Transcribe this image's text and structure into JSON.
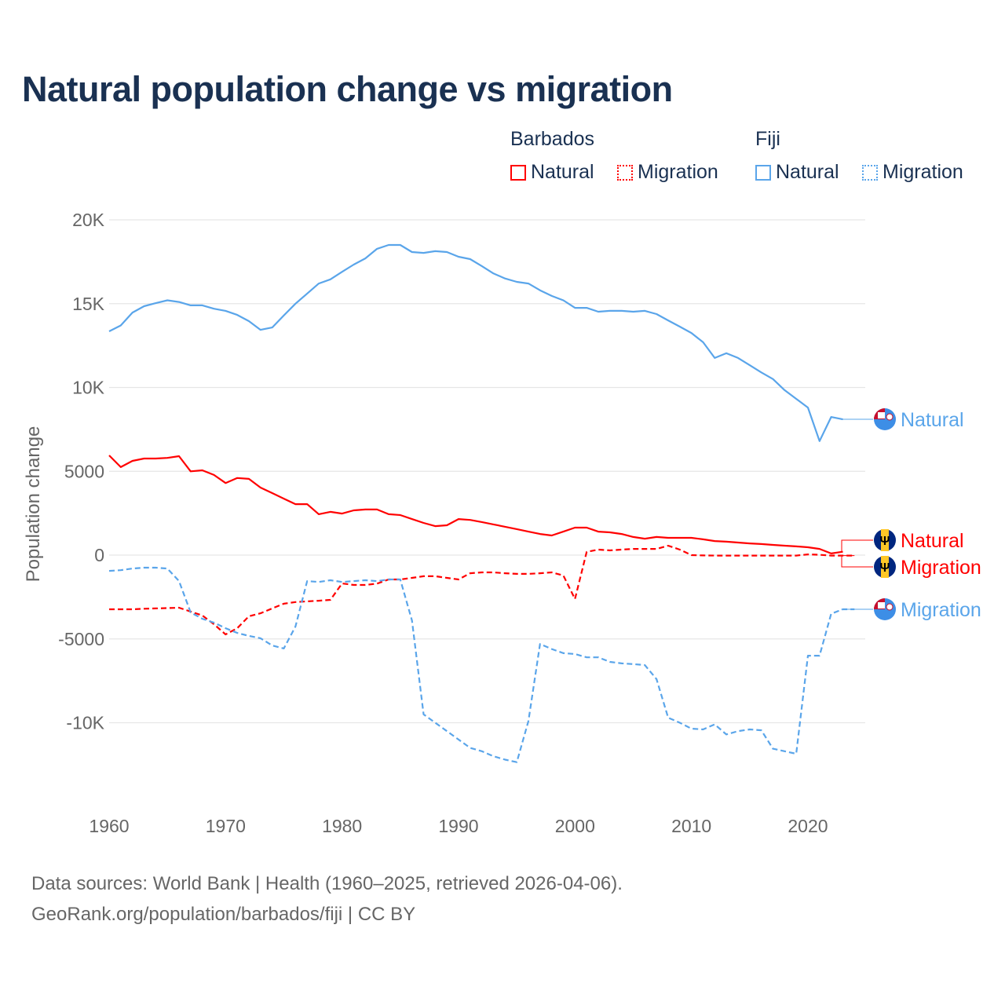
{
  "title": "Natural population change vs migration",
  "legend": {
    "groups": [
      {
        "name": "Barbados",
        "items": [
          {
            "label": "Natural",
            "style": "solid"
          },
          {
            "label": "Migration",
            "style": "dotted"
          }
        ],
        "color": "#ff0000"
      },
      {
        "name": "Fiji",
        "items": [
          {
            "label": "Natural",
            "style": "solid"
          },
          {
            "label": "Migration",
            "style": "dotted"
          }
        ],
        "color": "#5aa5ea"
      }
    ]
  },
  "footer": {
    "line1": "Data sources: World Bank | Health (1960–2025, retrieved 2026-04-06).",
    "line2": "GeoRank.org/population/barbados/fiji | CC BY"
  },
  "chart_data": {
    "type": "line",
    "title": "Natural population change vs migration",
    "xlabel": "",
    "ylabel": "Population change",
    "xlim": [
      1960,
      2025
    ],
    "ylim": [
      -14000,
      21000
    ],
    "x_ticks": [
      1960,
      1970,
      1980,
      1990,
      2000,
      2010,
      2020
    ],
    "x_tick_labels": [
      "1960",
      "1970",
      "1980",
      "1990",
      "2000",
      "2010",
      "2020"
    ],
    "y_ticks": [
      20000,
      15000,
      10000,
      5000,
      0,
      -5000,
      -10000
    ],
    "y_tick_labels": [
      "20K",
      "15K",
      "10K",
      "5000",
      "0",
      "-5000",
      "-10K"
    ],
    "grid": true,
    "legend_position": "top-right",
    "series": [
      {
        "name": "Fiji Natural",
        "end_label": "Natural",
        "country": "Fiji",
        "color": "#5aa5ea",
        "dash": "solid",
        "start_year": 1960,
        "values": [
          13350,
          13700,
          14470,
          14850,
          15030,
          15200,
          15100,
          14900,
          14900,
          14700,
          14570,
          14330,
          13960,
          13440,
          13580,
          14300,
          15000,
          15600,
          16200,
          16450,
          16900,
          17330,
          17700,
          18270,
          18500,
          18500,
          18080,
          18030,
          18130,
          18080,
          17800,
          17660,
          17240,
          16800,
          16500,
          16300,
          16200,
          15800,
          15460,
          15200,
          14750,
          14750,
          14520,
          14570,
          14570,
          14520,
          14570,
          14380,
          14000,
          13630,
          13250,
          12700,
          11760,
          12040,
          11760,
          11330,
          10900,
          10500,
          9840,
          9320,
          8800,
          6800,
          8240,
          8100
        ]
      },
      {
        "name": "Barbados Natural",
        "end_label": "Natural",
        "country": "Barbados",
        "color": "#ff0000",
        "dash": "solid",
        "start_year": 1960,
        "values": [
          5950,
          5250,
          5620,
          5760,
          5760,
          5800,
          5900,
          5000,
          5060,
          4780,
          4300,
          4600,
          4550,
          4030,
          3700,
          3370,
          3040,
          3040,
          2440,
          2580,
          2480,
          2670,
          2720,
          2720,
          2440,
          2390,
          2150,
          1920,
          1730,
          1780,
          2150,
          2100,
          1970,
          1830,
          1690,
          1550,
          1400,
          1260,
          1170,
          1400,
          1640,
          1640,
          1400,
          1360,
          1260,
          1080,
          980,
          1080,
          1030,
          1030,
          1030,
          940,
          840,
          800,
          750,
          700,
          660,
          610,
          560,
          520,
          470,
          370,
          100,
          200
        ]
      },
      {
        "name": "Barbados Migration",
        "end_label": "Migration",
        "country": "Barbados",
        "color": "#ff0000",
        "dash": "dashed",
        "start_year": 1960,
        "values": [
          -3230,
          -3230,
          -3230,
          -3200,
          -3180,
          -3160,
          -3140,
          -3370,
          -3600,
          -4120,
          -4730,
          -4360,
          -3650,
          -3470,
          -3180,
          -2900,
          -2800,
          -2760,
          -2720,
          -2670,
          -1690,
          -1780,
          -1780,
          -1700,
          -1450,
          -1450,
          -1360,
          -1260,
          -1260,
          -1360,
          -1450,
          -1080,
          -1030,
          -1030,
          -1080,
          -1120,
          -1120,
          -1080,
          -1030,
          -1220,
          -2620,
          190,
          330,
          280,
          330,
          370,
          370,
          370,
          560,
          330,
          0,
          -20,
          -30,
          -30,
          -30,
          -30,
          -30,
          -30,
          -30,
          -30,
          40,
          20,
          -30,
          -30,
          -30
        ]
      },
      {
        "name": "Fiji Migration",
        "end_label": "Migration",
        "country": "Fiji",
        "color": "#5aa5ea",
        "dash": "dashed",
        "start_year": 1960,
        "values": [
          -940,
          -900,
          -800,
          -750,
          -750,
          -800,
          -1550,
          -3420,
          -3800,
          -4030,
          -4360,
          -4640,
          -4820,
          -4960,
          -5390,
          -5570,
          -4260,
          -1550,
          -1600,
          -1500,
          -1600,
          -1550,
          -1500,
          -1550,
          -1450,
          -1450,
          -3900,
          -9500,
          -10000,
          -10500,
          -11000,
          -11500,
          -11700,
          -12000,
          -12200,
          -12350,
          -9900,
          -5300,
          -5600,
          -5850,
          -5900,
          -6100,
          -6100,
          -6370,
          -6460,
          -6500,
          -6560,
          -7400,
          -9700,
          -10000,
          -10350,
          -10400,
          -10100,
          -10700,
          -10500,
          -10400,
          -10450,
          -11550,
          -11700,
          -11850,
          -6000,
          -6000,
          -3500,
          -3230,
          -3230
        ]
      }
    ]
  }
}
